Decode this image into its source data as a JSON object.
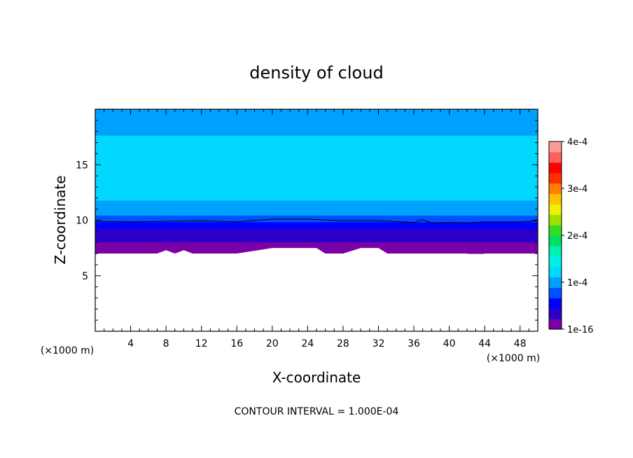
{
  "chart_data": {
    "type": "heatmap",
    "title": "density of cloud",
    "xlabel": "X-coordinate",
    "ylabel": "Z-coordinate",
    "x_unit": "(×1000 m)",
    "z_unit": "(×1000 m)",
    "xlim": [
      0,
      50
    ],
    "ylim": [
      0,
      20
    ],
    "x_ticks": [
      4,
      8,
      12,
      16,
      20,
      24,
      28,
      32,
      36,
      40,
      44,
      48
    ],
    "y_ticks": [
      5,
      10,
      15
    ],
    "footnote": "CONTOUR INTERVAL = 1.000E-04",
    "colorbar": {
      "ticks": [
        {
          "value": 1e-16,
          "label": "1e-16"
        },
        {
          "value": 0.0001,
          "label": "1e-4"
        },
        {
          "value": 0.0002,
          "label": "2e-4"
        },
        {
          "value": 0.0003,
          "label": "3e-4"
        },
        {
          "value": 0.0004,
          "label": "4e-4"
        }
      ],
      "range": [
        0,
        0.0004
      ],
      "colors": [
        "#7a00a8",
        "#2a00c8",
        "#0000ff",
        "#0050ff",
        "#00a0ff",
        "#00d8ff",
        "#00f0e8",
        "#00f0b0",
        "#00e060",
        "#30e020",
        "#a0e000",
        "#f0f000",
        "#ffc000",
        "#ff8000",
        "#ff3000",
        "#ff0000",
        "#ff6060",
        "#ff9a9a"
      ]
    },
    "profile": {
      "z": [
        7.0,
        7.5,
        8.0,
        8.5,
        9.0,
        9.5,
        10.0,
        10.5,
        11.0,
        12.0,
        13.0,
        14.0,
        15.0,
        16.0,
        16.8,
        17.5,
        18.3,
        19.0,
        20.0
      ],
      "density": [
        1e-16,
        1e-05,
        2e-05,
        3e-05,
        4e-05,
        5e-05,
        7e-05,
        9e-05,
        0.0001,
        0.000115,
        0.000125,
        0.00013,
        0.000132,
        0.000128,
        0.00012,
        0.000112,
        0.000105,
        0.0001,
        9.5e-05
      ]
    },
    "contour_z_at_x": {
      "x": [
        0,
        4,
        8,
        12,
        16,
        20,
        24,
        28,
        32,
        36,
        37,
        38,
        40,
        42,
        44,
        48,
        50
      ],
      "z": [
        9.9,
        9.85,
        9.9,
        9.95,
        9.85,
        10.1,
        10.1,
        9.95,
        9.95,
        9.8,
        10.05,
        9.75,
        9.8,
        9.75,
        9.85,
        9.85,
        9.95
      ]
    },
    "cloud_base_z_at_x": {
      "x": [
        0,
        7,
        8,
        9,
        10,
        11,
        12,
        16,
        20,
        24,
        25,
        26,
        28,
        30,
        32,
        33,
        36,
        40,
        42,
        43,
        44,
        48,
        50
      ],
      "z": [
        7.0,
        7.0,
        7.3,
        7.0,
        7.3,
        7.0,
        7.0,
        7.0,
        7.5,
        7.5,
        7.5,
        7.0,
        7.0,
        7.5,
        7.5,
        7.0,
        7.0,
        7.0,
        7.0,
        6.7,
        7.0,
        7.0,
        7.0
      ]
    }
  }
}
